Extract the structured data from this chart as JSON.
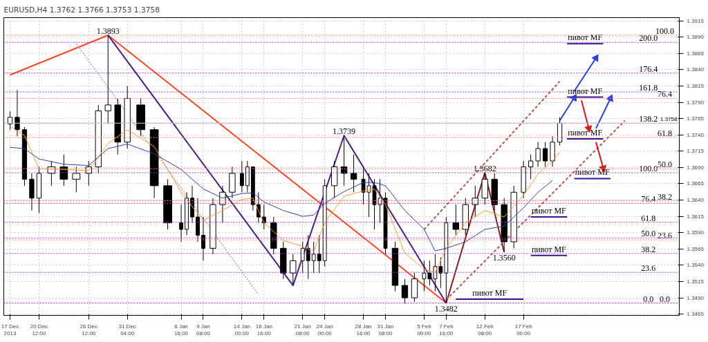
{
  "chart_data": {
    "type": "candlestick",
    "title": "EURUSD,H4 1.3762 1.3766 1.3753 1.3758",
    "xlim": [
      "2013-12-16T06:00",
      "2014-03-07T19:30"
    ],
    "xticks": [
      {
        "value": "2013-12-17",
        "label": "17 Dec 2013"
      },
      {
        "value": "2013-12-20T12:00",
        "label": "20 Dec 12:00"
      },
      {
        "value": "2013-12-26T12:00",
        "label": "26 Dec 12:00"
      },
      {
        "value": "2013-12-31T04:00",
        "label": "31 Dec 04:00"
      },
      {
        "value": "2014-01-06T16:00",
        "label": "6 Jan 16:00"
      },
      {
        "value": "2014-01-09T08:00",
        "label": "9 Jan 08:00"
      },
      {
        "value": "2014-01-14T00:00",
        "label": "14 Jan 00:00"
      },
      {
        "value": "2014-01-16T16:00",
        "label": "16 Jan 16:00"
      },
      {
        "value": "2014-01-21T08:00",
        "label": "21 Jan 08:00"
      },
      {
        "value": "2014-01-24T00:00",
        "label": "24 Jan 00:00"
      },
      {
        "value": "2014-01-28T16:00",
        "label": "28 Jan 16:00"
      },
      {
        "value": "2014-01-31T08:00",
        "label": "31 Jan 08:00"
      },
      {
        "value": "2014-02-05T00:00",
        "label": "5 Feb 00:00"
      },
      {
        "value": "2014-02-07T16:00",
        "label": "7 Feb 16:00"
      },
      {
        "value": "2014-02-12T08:00",
        "label": "12 Feb 08:00"
      },
      {
        "value": "2014-02-17T00:00",
        "label": "17 Feb 00:00"
      }
    ],
    "ylim": [
      1.3463,
      1.392
    ],
    "yticks": [
      1.3465,
      {
        "value": 1.349,
        "label": "1.3490"
      },
      1.3515,
      {
        "value": 1.354,
        "label": "1.3540"
      },
      1.3565,
      {
        "value": 1.359,
        "label": "1.3590"
      },
      1.3615,
      {
        "value": 1.364,
        "label": "1.3640"
      },
      1.3665,
      {
        "value": 1.369,
        "label": "1.3690"
      },
      1.3715,
      {
        "value": 1.374,
        "label": "1.3740"
      },
      1.3765,
      {
        "value": 1.379,
        "label": "1.3790"
      },
      1.3815,
      {
        "value": 1.384,
        "label": "1.3840"
      },
      1.3865,
      {
        "value": 1.389,
        "label": "1.3890"
      },
      1.3915
    ],
    "grid": true,
    "series": [
      {
        "color": "#000000",
        "x": [
          "2013-12-17T00:00",
          "2013-12-17T21:00",
          "2013-12-18T18:00",
          "2013-12-19T15:00",
          "2013-12-20T12:00",
          "2013-12-22T00:00",
          "2013-12-23T12:00",
          "2013-12-25T00:00",
          "2013-12-26T12:00",
          "2013-12-27T16:00",
          "2013-12-28T20:00",
          "2013-12-30T00:00",
          "2013-12-31T04:00",
          "2014-01-01T19:00",
          "2014-01-03T10:00",
          "2014-01-05T01:00",
          "2014-01-06T16:00",
          "2014-01-07T08:00",
          "2014-01-08T00:00",
          "2014-01-08T16:00",
          "2014-01-09T08:00",
          "2014-01-10T12:00",
          "2014-01-11T16:00",
          "2014-01-12T20:00",
          "2014-01-14T00:00",
          "2014-01-14T16:00",
          "2014-01-15T08:00",
          "2014-01-16T00:00",
          "2014-01-16T16:00",
          "2014-01-17T20:00",
          "2014-01-19T00:00",
          "2014-01-20T04:00",
          "2014-01-21T08:00",
          "2014-01-22T00:00",
          "2014-01-22T16:00",
          "2014-01-23T08:00",
          "2014-01-24T00:00",
          "2014-01-25T04:00",
          "2014-01-26T08:00",
          "2014-01-27T12:00",
          "2014-01-28T16:00",
          "2014-01-29T08:00",
          "2014-01-30T00:00",
          "2014-01-30T16:00",
          "2014-01-31T08:00",
          "2014-02-01T12:00",
          "2014-02-02T16:00",
          "2014-02-03T20:00",
          "2014-02-05T00:00",
          "2014-02-05T16:00",
          "2014-02-06T08:00",
          "2014-02-07T00:00",
          "2014-02-07T16:00",
          "2014-02-08T20:00",
          "2014-02-10T00:00",
          "2014-02-11T04:00",
          "2014-02-12T08:00",
          "2014-02-13T12:00",
          "2014-02-14T16:00",
          "2014-02-15T20:00",
          "2014-02-17T00:00",
          "2014-02-17T21:00",
          "2014-02-18T18:00",
          "2014-02-19T15:00",
          "2014-02-20T12:00",
          "2014-02-21T09:00"
        ],
        "ohlc": [
          [
            1.3757,
            1.3776,
            1.3748,
            1.3767
          ],
          [
            1.3767,
            1.3809,
            1.3738,
            1.3748
          ],
          [
            1.3748,
            1.3752,
            1.3662,
            1.3672
          ],
          [
            1.3672,
            1.3681,
            1.3624,
            1.3643
          ],
          [
            1.3643,
            1.3691,
            1.362,
            1.3681
          ],
          [
            1.3681,
            1.37,
            1.3662,
            1.3691
          ],
          [
            1.3691,
            1.371,
            1.3662,
            1.3672
          ],
          [
            1.3672,
            1.3691,
            1.3652,
            1.3681
          ],
          [
            1.3681,
            1.37,
            1.3662,
            1.3691
          ],
          [
            1.3691,
            1.3786,
            1.3681,
            1.3777
          ],
          [
            1.3777,
            1.3893,
            1.3757,
            1.3786
          ],
          [
            1.3786,
            1.3796,
            1.371,
            1.3729
          ],
          [
            1.3729,
            1.3815,
            1.3719,
            1.3796
          ],
          [
            1.3786,
            1.3796,
            1.3738,
            1.3748
          ],
          [
            1.3748,
            1.3752,
            1.3643,
            1.3662
          ],
          [
            1.3662,
            1.3672,
            1.3595,
            1.3605
          ],
          [
            1.3605,
            1.3633,
            1.3576,
            1.3595
          ],
          [
            1.3595,
            1.3652,
            1.3586,
            1.3643
          ],
          [
            1.3643,
            1.3662,
            1.3605,
            1.3614
          ],
          [
            1.3614,
            1.3643,
            1.3576,
            1.3586
          ],
          [
            1.3586,
            1.3614,
            1.3547,
            1.3566
          ],
          [
            1.3566,
            1.3643,
            1.3557,
            1.3633
          ],
          [
            1.3633,
            1.3662,
            1.3605,
            1.3652
          ],
          [
            1.3652,
            1.3691,
            1.3643,
            1.3681
          ],
          [
            1.3681,
            1.37,
            1.3652,
            1.3662
          ],
          [
            1.3662,
            1.37,
            1.3652,
            1.3691
          ],
          [
            1.3691,
            1.3691,
            1.3624,
            1.3633
          ],
          [
            1.3633,
            1.3652,
            1.3605,
            1.3614
          ],
          [
            1.3614,
            1.3633,
            1.3595,
            1.3605
          ],
          [
            1.3605,
            1.3614,
            1.3557,
            1.3566
          ],
          [
            1.3566,
            1.3576,
            1.3519,
            1.3528
          ],
          [
            1.3528,
            1.3557,
            1.3509,
            1.3547
          ],
          [
            1.3547,
            1.3576,
            1.3528,
            1.3566
          ],
          [
            1.3566,
            1.3586,
            1.3519,
            1.3547
          ],
          [
            1.3547,
            1.3576,
            1.3528,
            1.3557
          ],
          [
            1.3557,
            1.3586,
            1.3528,
            1.3547
          ],
          [
            1.3547,
            1.3672,
            1.3538,
            1.3662
          ],
          [
            1.3662,
            1.37,
            1.3643,
            1.3691
          ],
          [
            1.3691,
            1.3739,
            1.3662,
            1.3681
          ],
          [
            1.3681,
            1.371,
            1.3652,
            1.3672
          ],
          [
            1.3672,
            1.3691,
            1.3633,
            1.3652
          ],
          [
            1.3652,
            1.3681,
            1.3614,
            1.3662
          ],
          [
            1.3662,
            1.3672,
            1.3595,
            1.3633
          ],
          [
            1.3633,
            1.3672,
            1.3605,
            1.3643
          ],
          [
            1.3643,
            1.3652,
            1.3557,
            1.3566
          ],
          [
            1.3566,
            1.3576,
            1.35,
            1.3509
          ],
          [
            1.3509,
            1.3519,
            1.3481,
            1.349
          ],
          [
            1.349,
            1.3528,
            1.3484,
            1.3519
          ],
          [
            1.3519,
            1.3547,
            1.35,
            1.3528
          ],
          [
            1.3528,
            1.3547,
            1.3509,
            1.3519
          ],
          [
            1.3519,
            1.3557,
            1.35,
            1.3538
          ],
          [
            1.3538,
            1.3552,
            1.3505,
            1.3528
          ],
          [
            1.3528,
            1.3614,
            1.3482,
            1.3605
          ],
          [
            1.3605,
            1.3633,
            1.3586,
            1.3595
          ],
          [
            1.3595,
            1.3643,
            1.3586,
            1.3633
          ],
          [
            1.3633,
            1.3662,
            1.3614,
            1.3643
          ],
          [
            1.3643,
            1.3682,
            1.3633,
            1.3672
          ],
          [
            1.3672,
            1.3681,
            1.3624,
            1.3633
          ],
          [
            1.3633,
            1.3643,
            1.356,
            1.3576
          ],
          [
            1.3576,
            1.3662,
            1.3566,
            1.3652
          ],
          [
            1.3652,
            1.37,
            1.3643,
            1.3691
          ],
          [
            1.3691,
            1.371,
            1.3672,
            1.37
          ],
          [
            1.37,
            1.3729,
            1.3691,
            1.3719
          ],
          [
            1.3719,
            1.3729,
            1.3691,
            1.37
          ],
          [
            1.37,
            1.3738,
            1.3691,
            1.3729
          ],
          [
            1.3729,
            1.3767,
            1.3724,
            1.3758
          ]
        ]
      },
      {
        "type": "line",
        "color": "#ff9a2e",
        "x": [
          "2013-12-17T00:00",
          "2013-12-18T18:00",
          "2013-12-20T12:00",
          "2013-12-23T12:00",
          "2013-12-26T12:00",
          "2013-12-28T20:00",
          "2013-12-31T04:00",
          "2014-01-03T10:00",
          "2014-01-06T16:00",
          "2014-01-08T00:00",
          "2014-01-09T08:00",
          "2014-01-11T16:00",
          "2014-01-14T00:00",
          "2014-01-15T08:00",
          "2014-01-16T16:00",
          "2014-01-19T00:00",
          "2014-01-21T08:00",
          "2014-01-22T16:00",
          "2014-01-24T00:00",
          "2014-01-26T08:00",
          "2014-01-28T16:00",
          "2014-01-30T00:00",
          "2014-01-31T08:00",
          "2014-02-02T16:00",
          "2014-02-05T00:00",
          "2014-02-06T08:00",
          "2014-02-07T16:00",
          "2014-02-10T00:00",
          "2014-02-12T08:00",
          "2014-02-14T16:00",
          "2014-02-17T00:00",
          "2014-02-18T18:00",
          "2014-02-20T12:00",
          "2014-02-21T09:00"
        ],
        "values": [
          1.3753,
          1.3739,
          1.3688,
          1.3687,
          1.3685,
          1.3727,
          1.3748,
          1.3722,
          1.3652,
          1.363,
          1.3609,
          1.3624,
          1.3641,
          1.3643,
          1.3605,
          1.3578,
          1.3569,
          1.3561,
          1.3605,
          1.3646,
          1.3654,
          1.3657,
          1.3633,
          1.3559,
          1.3534,
          1.3529,
          1.3566,
          1.3605,
          1.3624,
          1.3614,
          1.3647,
          1.368,
          1.37,
          1.3714
        ]
      },
      {
        "type": "line",
        "color": "#3a3aa8",
        "x": [
          "2013-12-17T00:00",
          "2013-12-18T18:00",
          "2013-12-20T12:00",
          "2013-12-23T12:00",
          "2013-12-26T12:00",
          "2013-12-28T20:00",
          "2013-12-31T04:00",
          "2014-01-03T10:00",
          "2014-01-06T16:00",
          "2014-01-08T00:00",
          "2014-01-09T08:00",
          "2014-01-11T16:00",
          "2014-01-14T00:00",
          "2014-01-15T08:00",
          "2014-01-16T16:00",
          "2014-01-19T00:00",
          "2014-01-21T08:00",
          "2014-01-22T16:00",
          "2014-01-24T00:00",
          "2014-01-26T08:00",
          "2014-01-28T16:00",
          "2014-01-30T00:00",
          "2014-01-31T08:00",
          "2014-02-02T16:00",
          "2014-02-05T00:00",
          "2014-02-06T08:00",
          "2014-02-07T16:00",
          "2014-02-10T00:00",
          "2014-02-12T08:00",
          "2014-02-14T16:00",
          "2014-02-17T00:00",
          "2014-02-18T18:00",
          "2014-02-20T12:00"
        ],
        "values": [
          1.3721,
          1.3719,
          1.3703,
          1.3695,
          1.3693,
          1.3719,
          1.3726,
          1.3711,
          1.3687,
          1.3672,
          1.3657,
          1.3643,
          1.365,
          1.3651,
          1.3637,
          1.3624,
          1.3615,
          1.3617,
          1.3635,
          1.3653,
          1.3667,
          1.3667,
          1.3662,
          1.3624,
          1.3595,
          1.3562,
          1.3566,
          1.3576,
          1.3595,
          1.36,
          1.3628,
          1.3652,
          1.367
        ]
      },
      {
        "type": "line",
        "color": "#ff4422",
        "x": [
          "2013-12-17T00:00",
          "2013-12-28T20:00",
          "2014-02-07T16:00"
        ],
        "values": [
          1.3832,
          1.3893,
          1.3482
        ]
      },
      {
        "type": "line",
        "color": "#4b1c8c",
        "x": [
          "2013-12-28T20:00",
          "2014-01-20T04:00",
          "2014-01-26T08:00",
          "2014-02-07T16:00"
        ],
        "values": [
          1.3893,
          1.3509,
          1.3739,
          1.3482
        ]
      },
      {
        "type": "line",
        "color": "#8b1a1a",
        "x": [
          "2014-02-07T16:00",
          "2014-02-12T08:00",
          "2014-02-14T16:00"
        ],
        "values": [
          1.3482,
          1.3682,
          1.356
        ]
      },
      {
        "type": "line",
        "color": "#b05050",
        "line_style": "dashed",
        "x": [
          "2014-02-05T00:00",
          "2014-02-21T09:00"
        ],
        "values": [
          1.3595,
          1.3822
        ]
      },
      {
        "type": "line",
        "color": "#b05050",
        "line_style": "dashed",
        "x": [
          "2014-02-07T16:00",
          "2014-03-01T06:00"
        ],
        "values": [
          1.3487,
          1.3762
        ]
      },
      {
        "type": "line",
        "color": "#b8b8b8",
        "line_style": "dotted",
        "x": [
          "2013-12-25T00:00",
          "2014-01-16T00:00"
        ],
        "values": [
          1.388,
          1.3495
        ]
      },
      {
        "type": "line",
        "color": "#3c0f8c",
        "x": [
          "2014-02-22T06:00",
          "2014-02-26T15:00"
        ],
        "values": [
          1.388,
          1.388
        ]
      },
      {
        "type": "line",
        "color": "#3c0f8c",
        "x": [
          "2014-02-22T06:00",
          "2014-02-26T15:00"
        ],
        "values": [
          1.3798,
          1.3798
        ]
      },
      {
        "type": "line",
        "color": "#3c0f8c",
        "x": [
          "2014-02-22T06:00",
          "2014-02-26T15:00"
        ],
        "values": [
          1.3734,
          1.3734
        ]
      },
      {
        "type": "line",
        "color": "#3c0f8c",
        "x": [
          "2014-02-23T03:00",
          "2014-02-27T12:00"
        ],
        "values": [
          1.3673,
          1.3673
        ]
      },
      {
        "type": "line",
        "color": "#3c0f8c",
        "x": [
          "2014-02-17T21:00",
          "2014-02-22T06:00"
        ],
        "values": [
          1.3614,
          1.3614
        ]
      },
      {
        "type": "line",
        "color": "#3c0f8c",
        "x": [
          "2014-02-17T21:00",
          "2014-02-22T06:00"
        ],
        "values": [
          1.3555,
          1.3555
        ]
      },
      {
        "type": "line",
        "color": "#3c0f8c",
        "x": [
          "2014-02-08T20:00",
          "2014-02-17T00:00"
        ],
        "values": [
          1.3488,
          1.3488
        ]
      },
      {
        "type": "line",
        "color": "#2a3ee0",
        "marker": "triangle",
        "x": [
          "2014-02-21T09:00",
          "2014-02-23T03:00"
        ],
        "values": [
          1.3762,
          1.3797
        ]
      },
      {
        "type": "line",
        "color": "#2a3ee0",
        "marker": "triangle",
        "x": [
          "2014-02-23T03:00",
          "2014-02-25T18:00"
        ],
        "values": [
          1.3807,
          1.3858
        ]
      },
      {
        "type": "line",
        "color": "#e01818",
        "marker": "triangle",
        "x": [
          "2014-02-24T00:00",
          "2014-02-24T21:00"
        ],
        "values": [
          1.3793,
          1.375
        ]
      },
      {
        "type": "line",
        "color": "#2a3ee0",
        "marker": "triangle",
        "x": [
          "2014-02-25T18:00",
          "2014-02-27T12:00"
        ],
        "values": [
          1.375,
          1.3796
        ]
      },
      {
        "type": "line",
        "color": "#e01818",
        "marker": "triangle",
        "x": [
          "2014-02-25T18:00",
          "2014-02-26T15:00"
        ],
        "values": [
          1.3729,
          1.3689
        ]
      }
    ],
    "ref_lines": [
      {
        "axis": "y",
        "value": 1.3893,
        "color": "#ff7f6a",
        "line_style": "dotted"
      },
      {
        "axis": "y",
        "value": 1.3796,
        "color": "#ff7f6a",
        "line_style": "dotted"
      },
      {
        "axis": "y",
        "value": 1.3736,
        "color": "#ff7f6a",
        "line_style": "dotted"
      },
      {
        "axis": "y",
        "value": 1.3688,
        "color": "#ff7f6a",
        "line_style": "dotted"
      },
      {
        "axis": "y",
        "value": 1.3639,
        "color": "#ff7f6a",
        "line_style": "dotted"
      },
      {
        "axis": "y",
        "value": 1.3579,
        "color": "#ff7f6a",
        "line_style": "dotted"
      },
      {
        "axis": "y",
        "value": 1.3482,
        "color": "#ff7f6a",
        "line_style": "dotted"
      },
      {
        "axis": "y",
        "value": 1.3882,
        "color": "#b030e0",
        "line_style": "dotted"
      },
      {
        "axis": "y",
        "value": 1.3835,
        "color": "#b030e0",
        "line_style": "dotted"
      },
      {
        "axis": "y",
        "value": 1.3806,
        "color": "#b030e0",
        "line_style": "dotted"
      },
      {
        "axis": "y",
        "value": 1.3758,
        "color": "#b030e0",
        "line_style": "dotted"
      },
      {
        "axis": "y",
        "value": 1.3682,
        "color": "#b030e0",
        "line_style": "dotted"
      },
      {
        "axis": "y",
        "value": 1.3635,
        "color": "#b030e0",
        "line_style": "dotted"
      },
      {
        "axis": "y",
        "value": 1.3606,
        "color": "#b030e0",
        "line_style": "dotted"
      },
      {
        "axis": "y",
        "value": 1.3582,
        "color": "#b030e0",
        "line_style": "dotted"
      },
      {
        "axis": "y",
        "value": 1.3558,
        "color": "#b030e0",
        "line_style": "dotted"
      },
      {
        "axis": "y",
        "value": 1.3529,
        "color": "#b030e0",
        "line_style": "dotted"
      },
      {
        "axis": "y",
        "value": 1.3482,
        "color": "#b030e0",
        "line_style": "dotted"
      },
      {
        "axis": "y",
        "value": 1.3758,
        "label": "1.3758",
        "color": "#c8c8c8",
        "line_style": "solid"
      }
    ],
    "annotations": [
      {
        "text": "1.3893",
        "x": "2013-12-28T20:00",
        "y": 1.3893
      },
      {
        "text": "1.3739",
        "x": "2014-01-26T08:00",
        "y": 1.3739
      },
      {
        "text": "1.3482",
        "x": "2014-02-07T16:00",
        "y": 1.3482
      },
      {
        "text": "1.3682",
        "x": "2014-02-12T08:00",
        "y": 1.3682
      },
      {
        "text": "1.3560",
        "x": "2014-02-14T16:00",
        "y": 1.356
      },
      {
        "text": "пивот MF",
        "x": "2014-02-24T10:30",
        "y": 1.388
      },
      {
        "text": "пивот MF",
        "x": "2014-02-24T10:30",
        "y": 1.3798
      },
      {
        "text": "пивот MF",
        "x": "2014-02-24T10:30",
        "y": 1.3734
      },
      {
        "text": "пивот MF",
        "x": "2014-02-25T07:30",
        "y": 1.3673
      },
      {
        "text": "пивот MF",
        "x": "2014-02-20T01:30",
        "y": 1.3614
      },
      {
        "text": "пивот MF",
        "x": "2014-02-20T01:30",
        "y": 1.3555
      },
      {
        "text": "пивот MF",
        "x": "2014-02-12T22:00",
        "y": 1.3488
      },
      {
        "text": "100.0",
        "x": "2014-03-06T01:30",
        "y": 1.3893
      },
      {
        "text": "76.4",
        "x": "2014-03-06T01:30",
        "y": 1.3796
      },
      {
        "text": "61.8",
        "x": "2014-03-06T01:30",
        "y": 1.3736
      },
      {
        "text": "50.0",
        "x": "2014-03-06T01:30",
        "y": 1.3688
      },
      {
        "text": "38.2",
        "x": "2014-03-06T01:30",
        "y": 1.3639
      },
      {
        "text": "23.6",
        "x": "2014-03-06T01:30",
        "y": 1.3579
      },
      {
        "text": "0.0",
        "x": "2014-03-06T01:30",
        "y": 1.3482
      },
      {
        "text": "200.0",
        "x": "2014-03-04T02:00",
        "y": 1.3882
      },
      {
        "text": "176.4",
        "x": "2014-03-04T02:00",
        "y": 1.3835
      },
      {
        "text": "161.8",
        "x": "2014-03-04T02:00",
        "y": 1.3806
      },
      {
        "text": "138.2",
        "x": "2014-03-04T02:00",
        "y": 1.3758
      },
      {
        "text": "100.0",
        "x": "2014-03-04T02:00",
        "y": 1.3682
      },
      {
        "text": "76.4",
        "x": "2014-03-04T02:00",
        "y": 1.3635
      },
      {
        "text": "61.8",
        "x": "2014-03-04T02:00",
        "y": 1.3606
      },
      {
        "text": "50.0",
        "x": "2014-03-04T02:00",
        "y": 1.3582
      },
      {
        "text": "38.2",
        "x": "2014-03-04T02:00",
        "y": 1.3558
      },
      {
        "text": "23.6",
        "x": "2014-03-04T02:00",
        "y": 1.3529
      },
      {
        "text": "0.0",
        "x": "2014-03-04T02:00",
        "y": 1.3482
      }
    ]
  }
}
